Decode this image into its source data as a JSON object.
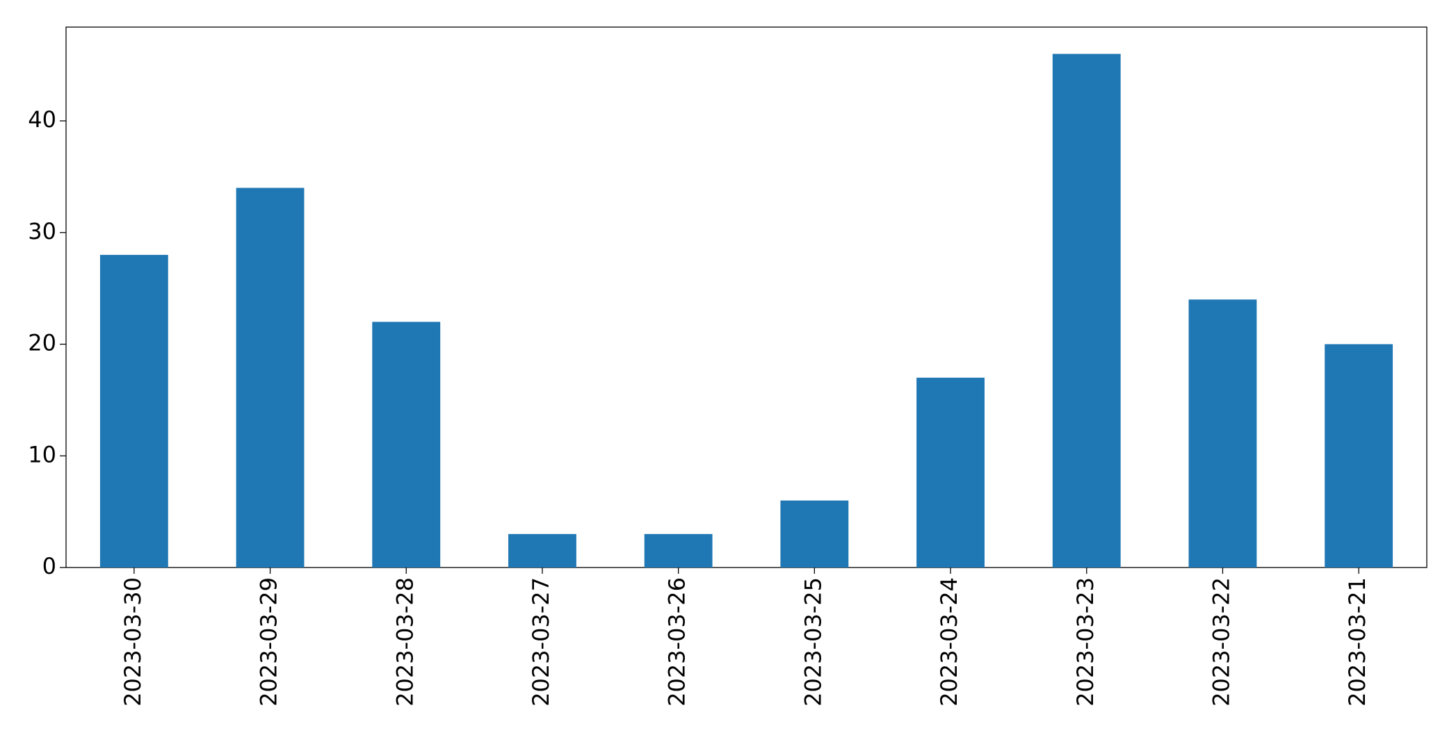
{
  "chart_data": {
    "type": "bar",
    "categories": [
      "2023-03-30",
      "2023-03-29",
      "2023-03-28",
      "2023-03-27",
      "2023-03-26",
      "2023-03-25",
      "2023-03-24",
      "2023-03-23",
      "2023-03-22",
      "2023-03-21"
    ],
    "values": [
      28,
      34,
      22,
      3,
      3,
      6,
      17,
      46,
      24,
      20
    ],
    "color": "#1f77b4",
    "ylim": [
      0,
      48.4
    ],
    "yticks": [
      0,
      10,
      20,
      30,
      40
    ],
    "grid": false
  }
}
